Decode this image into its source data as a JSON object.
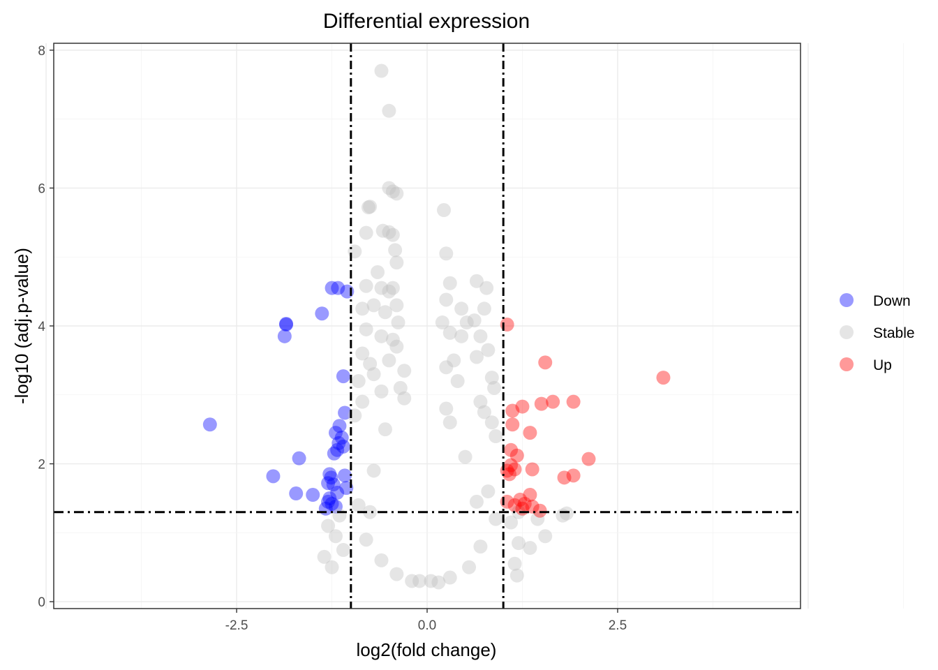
{
  "chart_data": {
    "type": "scatter",
    "title": "Differential expression",
    "xlabel": "log2(fold change)",
    "ylabel": "-log10 (adj.p-value)",
    "xlim": [
      -4.9,
      4.9
    ],
    "ylim": [
      -0.1,
      8.1
    ],
    "x_ticks": [
      -2.5,
      0.0,
      2.5
    ],
    "x_tick_labels": [
      "-2.5",
      "0.0",
      "2.5"
    ],
    "y_ticks": [
      0,
      2,
      4,
      6,
      8
    ],
    "y_tick_labels": [
      "0",
      "2",
      "4",
      "6",
      "8"
    ],
    "grid": true,
    "legend_position": "right",
    "thresholds": {
      "x": [
        -1,
        1
      ],
      "y": 1.3
    },
    "series": [
      {
        "name": "Down",
        "color": "#0000ff",
        "points": [
          [
            -2.85,
            2.57
          ],
          [
            -1.85,
            4.03
          ],
          [
            -1.85,
            4.02
          ],
          [
            -1.87,
            3.85
          ],
          [
            -1.68,
            2.08
          ],
          [
            -2.02,
            1.82
          ],
          [
            -1.72,
            1.57
          ],
          [
            -1.5,
            1.55
          ],
          [
            -1.38,
            4.18
          ],
          [
            -1.25,
            4.55
          ],
          [
            -1.17,
            4.55
          ],
          [
            -1.05,
            4.5
          ],
          [
            -1.1,
            3.27
          ],
          [
            -1.08,
            2.74
          ],
          [
            -1.15,
            2.55
          ],
          [
            -1.2,
            2.45
          ],
          [
            -1.12,
            2.38
          ],
          [
            -1.16,
            2.3
          ],
          [
            -1.1,
            2.25
          ],
          [
            -1.18,
            2.2
          ],
          [
            -1.22,
            2.15
          ],
          [
            -1.28,
            1.85
          ],
          [
            -1.26,
            1.8
          ],
          [
            -1.3,
            1.72
          ],
          [
            -1.23,
            1.7
          ],
          [
            -1.08,
            1.83
          ],
          [
            -1.06,
            1.65
          ],
          [
            -1.18,
            1.58
          ],
          [
            -1.28,
            1.5
          ],
          [
            -1.3,
            1.45
          ],
          [
            -1.25,
            1.42
          ],
          [
            -1.2,
            1.38
          ],
          [
            -1.33,
            1.35
          ]
        ]
      },
      {
        "name": "Stable",
        "color": "#bebebe",
        "points": [
          [
            -0.6,
            7.7
          ],
          [
            -0.5,
            7.12
          ],
          [
            -0.5,
            6.0
          ],
          [
            -0.45,
            5.95
          ],
          [
            -0.4,
            5.92
          ],
          [
            -0.75,
            5.73
          ],
          [
            -0.77,
            5.72
          ],
          [
            -0.8,
            5.35
          ],
          [
            -0.58,
            5.38
          ],
          [
            -0.5,
            5.36
          ],
          [
            -0.45,
            5.32
          ],
          [
            -0.95,
            5.08
          ],
          [
            -0.42,
            5.1
          ],
          [
            -0.4,
            4.92
          ],
          [
            -0.65,
            4.78
          ],
          [
            -0.8,
            4.58
          ],
          [
            -0.6,
            4.55
          ],
          [
            -0.5,
            4.5
          ],
          [
            -0.45,
            4.55
          ],
          [
            -0.85,
            4.25
          ],
          [
            -0.7,
            4.3
          ],
          [
            -0.4,
            4.3
          ],
          [
            -0.55,
            4.2
          ],
          [
            -0.38,
            4.05
          ],
          [
            -0.8,
            3.95
          ],
          [
            -0.6,
            3.85
          ],
          [
            -0.45,
            3.8
          ],
          [
            -0.85,
            3.6
          ],
          [
            -0.75,
            3.45
          ],
          [
            -0.7,
            3.3
          ],
          [
            -0.9,
            3.2
          ],
          [
            -0.3,
            3.35
          ],
          [
            -0.6,
            3.05
          ],
          [
            -0.85,
            2.9
          ],
          [
            -0.95,
            2.7
          ],
          [
            -0.3,
            2.95
          ],
          [
            0.22,
            5.68
          ],
          [
            0.25,
            5.05
          ],
          [
            0.3,
            4.62
          ],
          [
            0.65,
            4.65
          ],
          [
            0.78,
            4.55
          ],
          [
            0.25,
            4.38
          ],
          [
            0.45,
            4.25
          ],
          [
            0.75,
            4.25
          ],
          [
            0.2,
            4.05
          ],
          [
            0.52,
            4.05
          ],
          [
            0.62,
            4.08
          ],
          [
            0.3,
            3.9
          ],
          [
            0.45,
            3.85
          ],
          [
            0.7,
            3.85
          ],
          [
            0.8,
            3.65
          ],
          [
            0.65,
            3.55
          ],
          [
            0.25,
            3.4
          ],
          [
            0.85,
            3.25
          ],
          [
            0.88,
            3.1
          ],
          [
            0.7,
            2.9
          ],
          [
            0.75,
            2.75
          ],
          [
            0.85,
            2.6
          ],
          [
            0.9,
            2.4
          ],
          [
            0.25,
            2.8
          ],
          [
            1.2,
            1.3
          ],
          [
            1.45,
            1.2
          ],
          [
            1.55,
            0.95
          ],
          [
            1.83,
            1.28
          ],
          [
            1.78,
            1.25
          ],
          [
            1.1,
            1.15
          ],
          [
            1.2,
            0.85
          ],
          [
            1.35,
            0.78
          ],
          [
            1.15,
            0.55
          ],
          [
            1.18,
            0.38
          ],
          [
            -1.3,
            1.1
          ],
          [
            -1.35,
            0.65
          ],
          [
            -1.2,
            0.95
          ],
          [
            -1.1,
            0.75
          ],
          [
            -1.25,
            0.5
          ],
          [
            -1.15,
            1.25
          ],
          [
            -0.4,
            3.7
          ],
          [
            -0.5,
            3.5
          ],
          [
            -0.35,
            3.1
          ],
          [
            0.35,
            3.5
          ],
          [
            0.4,
            3.2
          ],
          [
            0.3,
            2.6
          ],
          [
            -0.55,
            2.5
          ],
          [
            0.5,
            2.1
          ],
          [
            -0.7,
            1.9
          ],
          [
            0.8,
            1.6
          ],
          [
            -0.9,
            1.4
          ],
          [
            0.9,
            1.2
          ],
          [
            -0.8,
            0.9
          ],
          [
            0.7,
            0.8
          ],
          [
            -0.6,
            0.6
          ],
          [
            0.55,
            0.5
          ],
          [
            -0.4,
            0.4
          ],
          [
            0.3,
            0.35
          ],
          [
            -0.2,
            0.3
          ],
          [
            0.15,
            0.28
          ],
          [
            -0.1,
            0.3
          ],
          [
            0.05,
            0.3
          ],
          [
            -0.75,
            1.3
          ],
          [
            0.65,
            1.45
          ]
        ]
      },
      {
        "name": "Up",
        "color": "#ff0000",
        "points": [
          [
            3.1,
            3.25
          ],
          [
            1.55,
            3.47
          ],
          [
            1.05,
            4.02
          ],
          [
            1.92,
            2.9
          ],
          [
            1.65,
            2.9
          ],
          [
            1.5,
            2.87
          ],
          [
            1.25,
            2.83
          ],
          [
            1.12,
            2.77
          ],
          [
            1.12,
            2.57
          ],
          [
            1.35,
            2.45
          ],
          [
            1.1,
            2.2
          ],
          [
            1.18,
            2.12
          ],
          [
            2.12,
            2.07
          ],
          [
            1.1,
            1.98
          ],
          [
            1.15,
            1.92
          ],
          [
            1.05,
            1.9
          ],
          [
            1.08,
            1.85
          ],
          [
            1.38,
            1.92
          ],
          [
            1.8,
            1.8
          ],
          [
            1.92,
            1.83
          ],
          [
            1.35,
            1.55
          ],
          [
            1.22,
            1.48
          ],
          [
            1.28,
            1.42
          ],
          [
            1.38,
            1.38
          ],
          [
            1.48,
            1.32
          ],
          [
            1.05,
            1.45
          ],
          [
            1.15,
            1.4
          ],
          [
            1.25,
            1.35
          ]
        ]
      }
    ]
  }
}
